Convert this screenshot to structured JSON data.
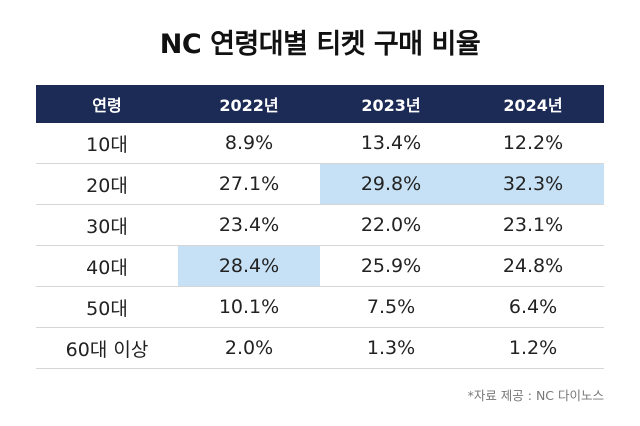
{
  "title": "NC 연령대별 티켓 구매 비율",
  "source": "*자료 제공 : NC 다이노스",
  "chart_data": {
    "type": "table",
    "title": "NC 연령대별 티켓 구매 비율",
    "columns": [
      "연령",
      "2022년",
      "2023년",
      "2024년"
    ],
    "rows": [
      {
        "cells": [
          "10대",
          "8.9%",
          "13.4%",
          "12.2%"
        ],
        "highlight": []
      },
      {
        "cells": [
          "20대",
          "27.1%",
          "29.8%",
          "32.3%"
        ],
        "highlight": [
          2,
          3
        ]
      },
      {
        "cells": [
          "30대",
          "23.4%",
          "22.0%",
          "23.1%"
        ],
        "highlight": []
      },
      {
        "cells": [
          "40대",
          "28.4%",
          "25.9%",
          "24.8%"
        ],
        "highlight": [
          1
        ]
      },
      {
        "cells": [
          "50대",
          "10.1%",
          "7.5%",
          "6.4%"
        ],
        "highlight": []
      },
      {
        "cells": [
          "60대 이상",
          "2.0%",
          "1.3%",
          "1.2%"
        ],
        "highlight": []
      }
    ],
    "colors": {
      "header_bg": "#1c2b55",
      "highlight": "#c6e1f5"
    }
  }
}
